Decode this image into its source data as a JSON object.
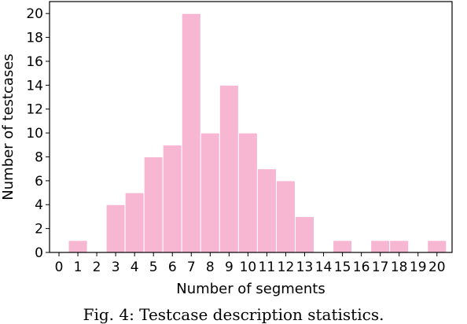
{
  "chart_data": {
    "type": "bar",
    "categories": [
      "0",
      "1",
      "2",
      "3",
      "4",
      "5",
      "6",
      "7",
      "8",
      "9",
      "10",
      "11",
      "12",
      "13",
      "14",
      "15",
      "16",
      "17",
      "18",
      "19",
      "20"
    ],
    "values": [
      0,
      1,
      0,
      4,
      5,
      8,
      9,
      20,
      10,
      14,
      10,
      7,
      6,
      3,
      0,
      1,
      0,
      1,
      1,
      0,
      1
    ],
    "xlabel": "Number of segments",
    "ylabel": "Number of testcases",
    "ylim": [
      0,
      21
    ],
    "yticks": [
      0,
      2,
      4,
      6,
      8,
      10,
      12,
      14,
      16,
      18,
      20
    ],
    "bar_color": "#f7b6d2",
    "grid": false
  },
  "caption": "Fig. 4: Testcase description statistics."
}
